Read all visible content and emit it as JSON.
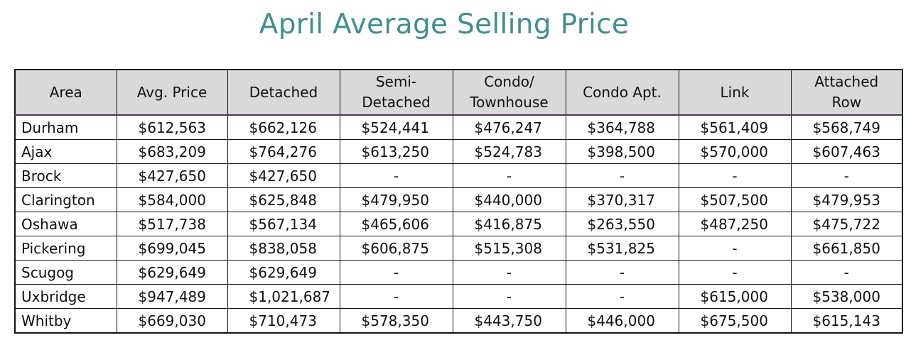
{
  "title": "April Average Selling Price",
  "chart_data": {
    "type": "table",
    "title": "April Average Selling Price",
    "columns": [
      "Area",
      "Avg. Price",
      "Detached",
      "Semi-Detached",
      "Condo/ Townhouse",
      "Condo Apt.",
      "Link",
      "Attached Row"
    ],
    "rows": [
      [
        "Durham",
        "$612,563",
        "$662,126",
        "$524,441",
        "$476,247",
        "$364,788",
        "$561,409",
        "$568,749"
      ],
      [
        "Ajax",
        "$683,209",
        "$764,276",
        "$613,250",
        "$524,783",
        "$398,500",
        "$570,000",
        "$607,463"
      ],
      [
        "Brock",
        "$427,650",
        "$427,650",
        "-",
        "-",
        "-",
        "-",
        "-"
      ],
      [
        "Clarington",
        "$584,000",
        "$625,848",
        "$479,950",
        "$440,000",
        "$370,317",
        "$507,500",
        "$479,953"
      ],
      [
        "Oshawa",
        "$517,738",
        "$567,134",
        "$465,606",
        "$416,875",
        "$263,550",
        "$487,250",
        "$475,722"
      ],
      [
        "Pickering",
        "$699,045",
        "$838,058",
        "$606,875",
        "$515,308",
        "$531,825",
        "-",
        "$661,850"
      ],
      [
        "Scugog",
        "$629,649",
        "$629,649",
        "-",
        "-",
        "-",
        "-",
        "-"
      ],
      [
        "Uxbridge",
        "$947,489",
        "$1,021,687",
        "-",
        "-",
        "-",
        "$615,000",
        "$538,000"
      ],
      [
        "Whitby",
        "$669,030",
        "$710,473",
        "$578,350",
        "$443,750",
        "$446,000",
        "$675,500",
        "$615,143"
      ]
    ]
  },
  "header_lines": [
    [
      "Area"
    ],
    [
      "Avg. Price"
    ],
    [
      "Detached"
    ],
    [
      "Semi-",
      "Detached"
    ],
    [
      "Condo/",
      "Townhouse"
    ],
    [
      "Condo Apt."
    ],
    [
      "Link"
    ],
    [
      "Attached",
      "Row"
    ]
  ],
  "colors": {
    "title": "#3f8f92",
    "header_bg": "#d9d9d9",
    "header_rule": "#5b2c5e",
    "grid": "#111111"
  }
}
